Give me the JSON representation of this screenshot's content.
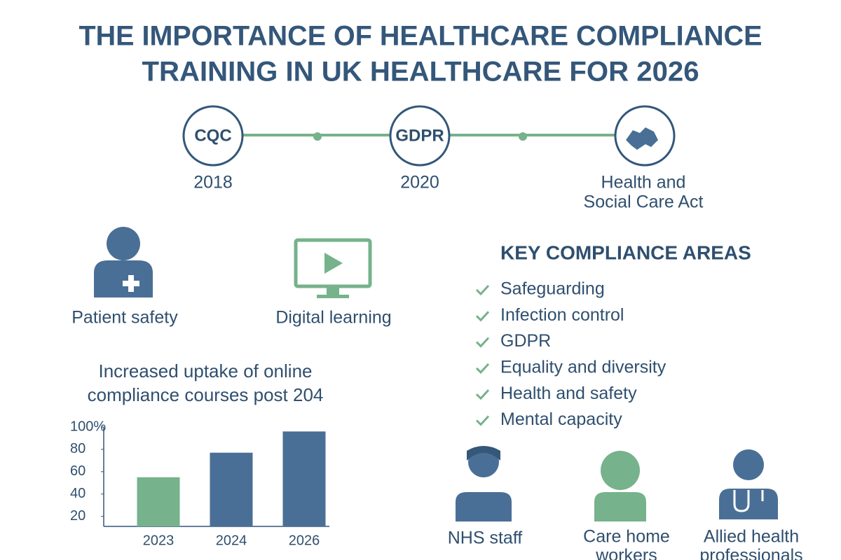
{
  "header": {
    "title_lines": [
      "THE IMPORTANCE OF HEALTHCARE COMPLIANCE",
      "TRAINING IN UK HEALTHCARE FOR 2026"
    ]
  },
  "timeline": [
    {
      "badge": "CQC",
      "label_lines": [
        "2018"
      ]
    },
    {
      "badge": "GDPR",
      "label_lines": [
        "2020"
      ]
    },
    {
      "label_lines": [
        "Health and",
        "Social Care Act"
      ]
    }
  ],
  "features": [
    "Patient safety",
    "Digital learning"
  ],
  "key_areas": {
    "title": "KEY COMPLIANCE AREAS",
    "items": [
      "Safeguarding",
      "Infection control",
      "GDPR",
      "Equality and diversity",
      "Health and safety",
      "Mental capacity"
    ]
  },
  "chart_data": {
    "type": "bar",
    "title_lines": [
      "Increased uptake of online",
      "compliance courses post 204"
    ],
    "categories": [
      "2023",
      "2024",
      "2026"
    ],
    "values": [
      55,
      77,
      96
    ],
    "colors": [
      "#76b28b",
      "#4a6f96",
      "#4a6f96"
    ],
    "ylim": [
      11,
      100
    ],
    "yticks": [
      20,
      40,
      60,
      80,
      {
        "value": 100,
        "label": "100%"
      }
    ]
  },
  "audience": [
    {
      "label_lines": [
        "NHS staff"
      ]
    },
    {
      "label_lines": [
        "Care home",
        "workers"
      ]
    },
    {
      "label_lines": [
        "Allied health",
        "professionals"
      ]
    }
  ]
}
